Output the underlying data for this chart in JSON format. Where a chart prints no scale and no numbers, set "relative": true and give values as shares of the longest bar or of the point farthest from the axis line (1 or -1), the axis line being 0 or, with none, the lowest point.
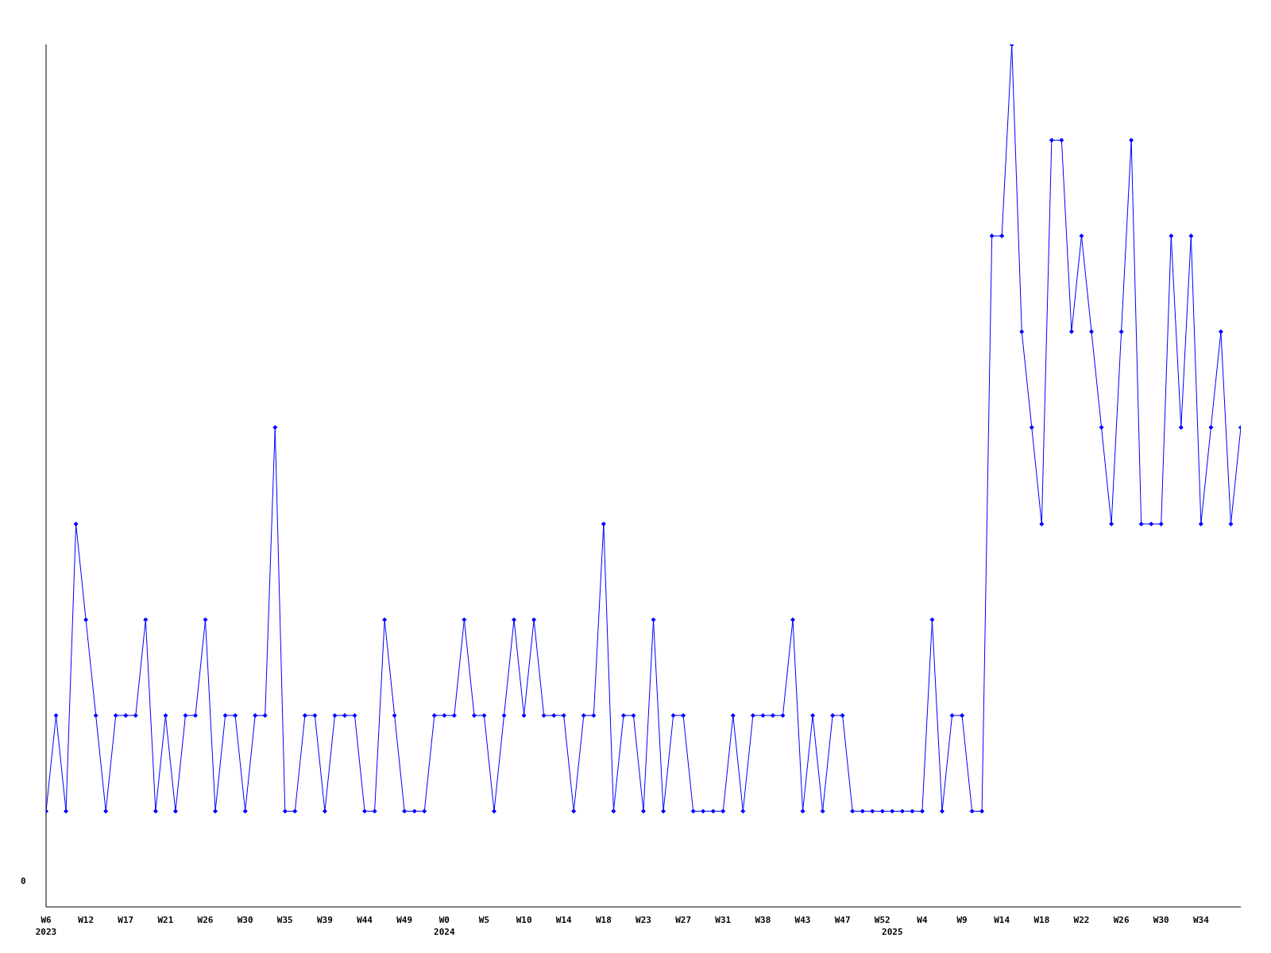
{
  "chart_data": {
    "type": "line",
    "relative": true,
    "marker": "diamond",
    "line_style": "solid",
    "grid": false,
    "legend": false,
    "annotations": [
      "0"
    ],
    "categories": [
      "W6\n2023",
      null,
      null,
      null,
      "W12",
      null,
      null,
      null,
      "W17",
      null,
      null,
      null,
      "W21",
      null,
      null,
      null,
      "W26",
      null,
      null,
      null,
      "W30",
      null,
      null,
      null,
      "W35",
      null,
      null,
      null,
      "W39",
      null,
      null,
      null,
      "W44",
      null,
      null,
      null,
      "W49",
      null,
      null,
      null,
      "W0\n2024",
      null,
      null,
      null,
      "W5",
      null,
      null,
      null,
      "W10",
      null,
      null,
      null,
      "W14",
      null,
      null,
      null,
      "W18",
      null,
      null,
      null,
      "W23",
      null,
      null,
      null,
      "W27",
      null,
      null,
      null,
      "W31",
      null,
      null,
      null,
      "W38",
      null,
      null,
      null,
      "W43",
      null,
      null,
      null,
      "W47",
      null,
      null,
      null,
      "W52",
      "\n2025",
      null,
      null,
      "W4",
      null,
      null,
      null,
      "W9",
      null,
      null,
      null,
      "W14",
      null,
      null,
      null,
      "W18",
      null,
      null,
      null,
      "W22",
      null,
      null,
      null,
      "W26",
      null,
      null,
      null,
      "W30",
      null,
      null,
      null,
      "W34",
      null,
      null,
      null,
      null
    ],
    "series": [
      {
        "color": "#0000ff",
        "values": [
          0.111,
          0.222,
          0.111,
          0.444,
          0.333,
          0.222,
          0.111,
          0.222,
          0.222,
          0.222,
          0.333,
          0.111,
          0.222,
          0.111,
          0.222,
          0.222,
          0.333,
          0.111,
          0.222,
          0.222,
          0.111,
          0.222,
          0.222,
          0.556,
          0.111,
          0.111,
          0.222,
          0.222,
          0.111,
          0.222,
          0.222,
          0.222,
          0.111,
          0.111,
          0.333,
          0.222,
          0.111,
          0.111,
          0.111,
          0.222,
          0.222,
          0.222,
          0.333,
          0.222,
          0.222,
          0.111,
          0.222,
          0.333,
          0.222,
          0.333,
          0.222,
          0.222,
          0.222,
          0.111,
          0.222,
          0.222,
          0.444,
          0.111,
          0.222,
          0.222,
          0.111,
          0.333,
          0.111,
          0.222,
          0.222,
          0.111,
          0.111,
          0.111,
          0.111,
          0.222,
          0.111,
          0.222,
          0.222,
          0.222,
          0.222,
          0.333,
          0.111,
          0.222,
          0.111,
          0.222,
          0.222,
          0.111,
          0.111,
          0.111,
          0.111,
          0.111,
          0.111,
          0.111,
          0.111,
          0.333,
          0.111,
          0.222,
          0.222,
          0.111,
          0.111,
          0.778,
          0.778,
          1,
          0.667,
          0.556,
          0.444,
          0.889,
          0.889,
          0.667,
          0.778,
          0.667,
          0.556,
          0.444,
          0.667,
          0.889,
          0.444,
          0.444,
          0.444,
          0.778,
          0.556,
          0.778,
          0.444,
          0.556,
          0.667,
          0.444,
          0.556
        ]
      }
    ]
  }
}
